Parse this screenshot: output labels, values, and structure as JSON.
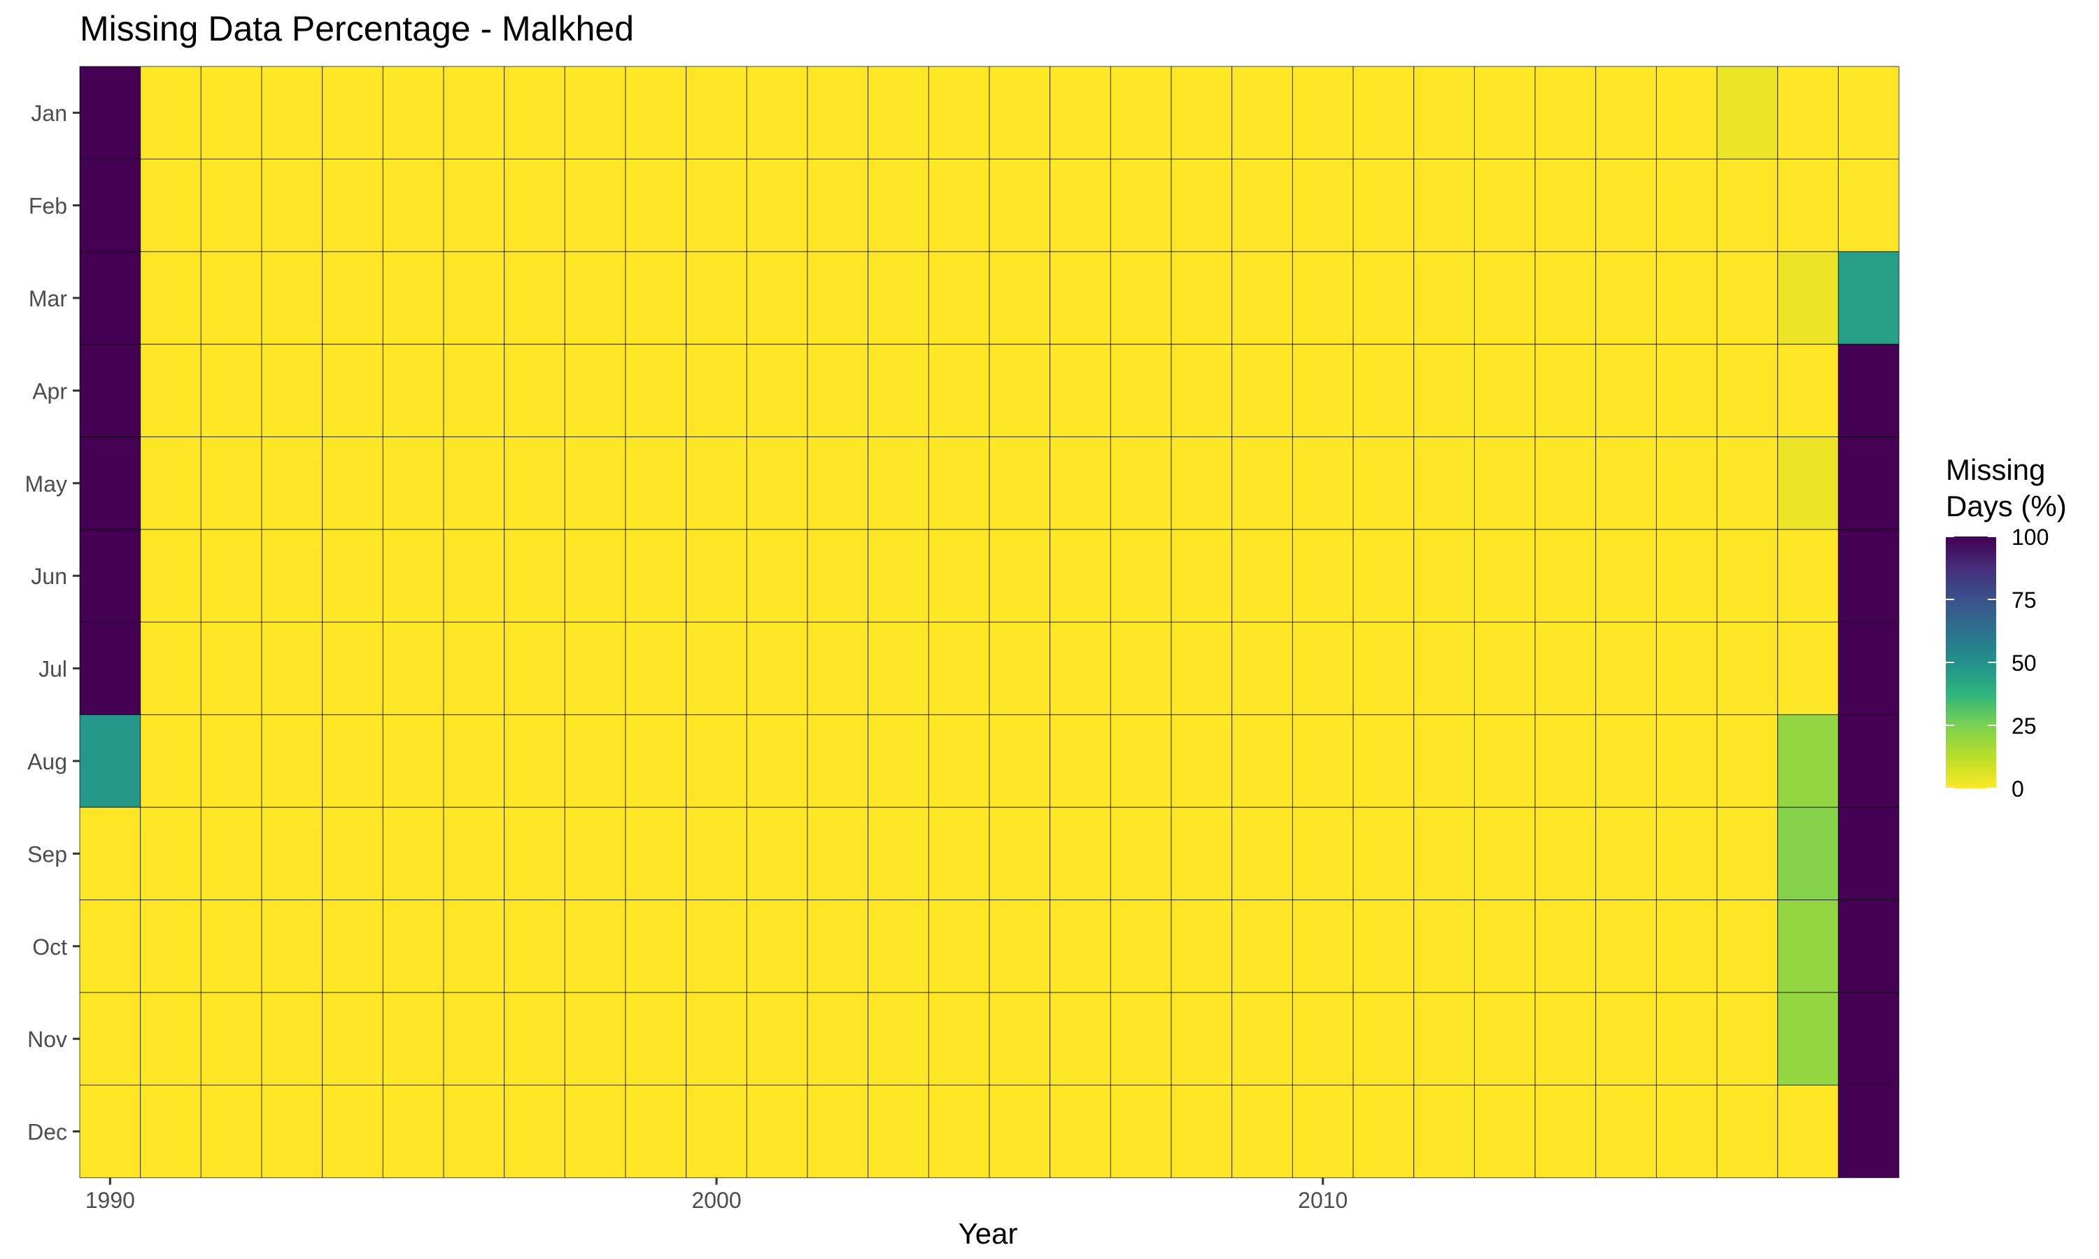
{
  "chart_data": {
    "type": "heatmap",
    "title": "Missing Data Percentage - Malkhed",
    "xlabel": "Year",
    "ylabel": "",
    "years": [
      1990,
      1991,
      1992,
      1993,
      1994,
      1995,
      1996,
      1997,
      1998,
      1999,
      2000,
      2001,
      2002,
      2003,
      2004,
      2005,
      2006,
      2007,
      2008,
      2009,
      2010,
      2011,
      2012,
      2013,
      2014,
      2015,
      2016,
      2017,
      2018,
      2019
    ],
    "months": [
      "Jan",
      "Feb",
      "Mar",
      "Apr",
      "May",
      "Jun",
      "Jul",
      "Aug",
      "Sep",
      "Oct",
      "Nov",
      "Dec"
    ],
    "x_ticks": [
      "1990",
      "2000",
      "2010"
    ],
    "values": [
      [
        100,
        0,
        0,
        0,
        0,
        0,
        0,
        0,
        0,
        0,
        0,
        0,
        0,
        0,
        0,
        0,
        0,
        0,
        0,
        0,
        0,
        0,
        0,
        0,
        0,
        0,
        0,
        3,
        0,
        0
      ],
      [
        100,
        0,
        0,
        0,
        0,
        0,
        0,
        0,
        0,
        0,
        0,
        0,
        0,
        0,
        0,
        0,
        0,
        0,
        0,
        0,
        0,
        0,
        0,
        0,
        0,
        0,
        0,
        0,
        0,
        0
      ],
      [
        100,
        0,
        0,
        0,
        0,
        0,
        0,
        0,
        0,
        0,
        0,
        0,
        0,
        0,
        0,
        0,
        0,
        0,
        0,
        0,
        0,
        0,
        0,
        0,
        0,
        0,
        0,
        0,
        3,
        45
      ],
      [
        100,
        0,
        0,
        0,
        0,
        0,
        0,
        0,
        0,
        0,
        0,
        0,
        0,
        0,
        0,
        0,
        0,
        0,
        0,
        0,
        0,
        0,
        0,
        0,
        0,
        0,
        0,
        0,
        0,
        100
      ],
      [
        100,
        0,
        0,
        0,
        0,
        0,
        0,
        0,
        0,
        0,
        0,
        0,
        0,
        0,
        0,
        0,
        0,
        0,
        0,
        0,
        0,
        0,
        0,
        0,
        0,
        0,
        0,
        0,
        3,
        100
      ],
      [
        100,
        0,
        0,
        0,
        0,
        0,
        0,
        0,
        0,
        0,
        0,
        0,
        0,
        0,
        0,
        0,
        0,
        0,
        0,
        0,
        0,
        0,
        0,
        0,
        0,
        0,
        0,
        0,
        0,
        100
      ],
      [
        100,
        0,
        0,
        0,
        0,
        0,
        0,
        0,
        0,
        0,
        0,
        0,
        0,
        0,
        0,
        0,
        0,
        0,
        0,
        0,
        0,
        0,
        0,
        0,
        0,
        0,
        0,
        0,
        0,
        100
      ],
      [
        48,
        0,
        0,
        0,
        0,
        0,
        0,
        0,
        0,
        0,
        0,
        0,
        0,
        0,
        0,
        0,
        0,
        0,
        0,
        0,
        0,
        0,
        0,
        0,
        0,
        0,
        0,
        0,
        20,
        100
      ],
      [
        0,
        0,
        0,
        0,
        0,
        0,
        0,
        0,
        0,
        0,
        0,
        0,
        0,
        0,
        0,
        0,
        0,
        0,
        0,
        0,
        0,
        0,
        0,
        0,
        0,
        0,
        0,
        0,
        23,
        100
      ],
      [
        0,
        0,
        0,
        0,
        0,
        0,
        0,
        0,
        0,
        0,
        0,
        0,
        0,
        0,
        0,
        0,
        0,
        0,
        0,
        0,
        0,
        0,
        0,
        0,
        0,
        0,
        0,
        0,
        20,
        100
      ],
      [
        0,
        0,
        0,
        0,
        0,
        0,
        0,
        0,
        0,
        0,
        0,
        0,
        0,
        0,
        0,
        0,
        0,
        0,
        0,
        0,
        0,
        0,
        0,
        0,
        0,
        0,
        0,
        0,
        20,
        100
      ],
      [
        0,
        0,
        0,
        0,
        0,
        0,
        0,
        0,
        0,
        0,
        0,
        0,
        0,
        0,
        0,
        0,
        0,
        0,
        0,
        0,
        0,
        0,
        0,
        0,
        0,
        0,
        0,
        0,
        0,
        100
      ]
    ],
    "legend": {
      "title_line1": "Missing",
      "title_line2": "Days (%)",
      "ticks": [
        "100",
        "75",
        "50",
        "25",
        "0"
      ],
      "range": [
        0,
        100
      ],
      "position": "right"
    },
    "colorscale": [
      "#FDE725",
      "#B8DE29",
      "#7AD151",
      "#2FB47C",
      "#21918C",
      "#2C728E",
      "#3B528B",
      "#472D7B",
      "#440154"
    ]
  }
}
